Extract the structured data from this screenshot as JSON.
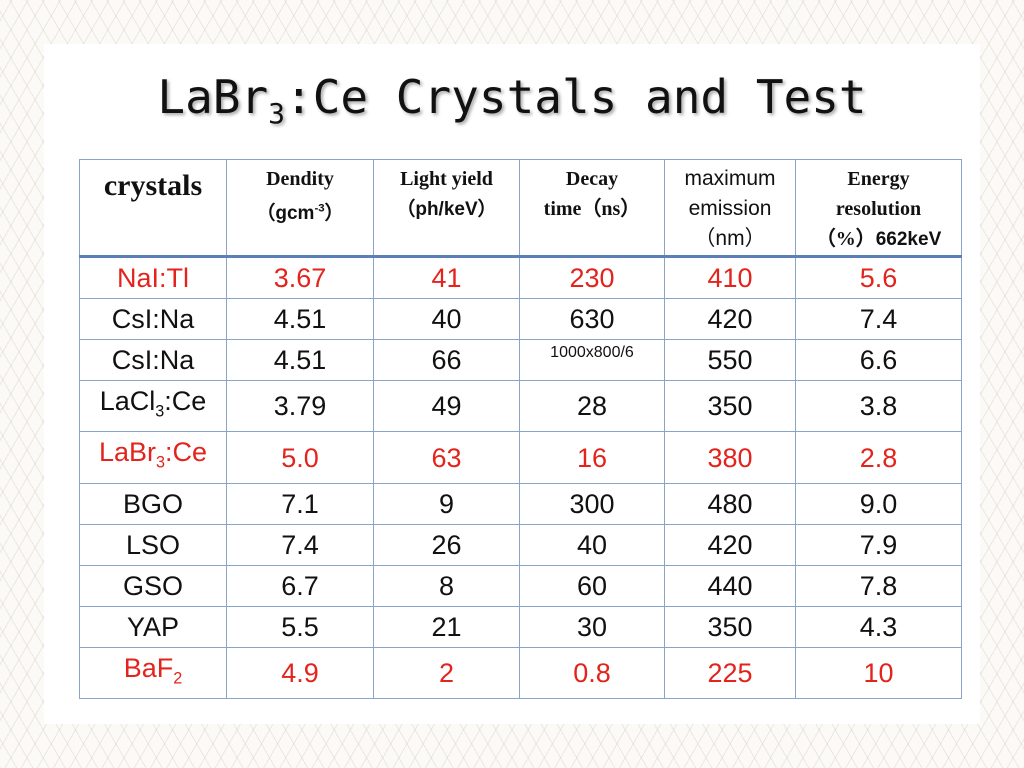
{
  "slide": {
    "title_main": "LaBr",
    "title_sub": "3",
    "title_rest": ":Ce Crystals and Test"
  },
  "table": {
    "headers": {
      "crystals": "crystals",
      "density": "Dendity",
      "density_unit_a": "（gcm",
      "density_unit_sup": "-3",
      "density_unit_b": "）",
      "light_yield": "Light yield",
      "light_yield_unit": "（ph/keV）",
      "decay_a": "Decay",
      "decay_b": "time（ns）",
      "emission_a": "maximum",
      "emission_b": "emission",
      "emission_c": "（nm）",
      "resolution_a": "Energy",
      "resolution_b": "resolution",
      "resolution_c": "（%）",
      "resolution_d": "662keV"
    },
    "rows": [
      {
        "crystal": "NaI:Tl",
        "density": "3.67",
        "light_yield": "41",
        "decay": "230",
        "emission": "410",
        "resolution": "5.6",
        "highlight": true
      },
      {
        "crystal": "CsI:Na",
        "density": "4.51",
        "light_yield": "40",
        "decay": "630",
        "emission": "420",
        "resolution": "7.4",
        "highlight": false
      },
      {
        "crystal": "CsI:Na",
        "density": "4.51",
        "light_yield": "66",
        "decay": "1000x800/6",
        "emission": "550",
        "resolution": "6.6",
        "highlight": false
      },
      {
        "crystal_a": "LaCl",
        "crystal_sub": "3",
        "crystal_b": ":Ce",
        "density": "3.79",
        "light_yield": "49",
        "decay": "28",
        "emission": "350",
        "resolution": "3.8",
        "highlight": false
      },
      {
        "crystal_a": "LaBr",
        "crystal_sub": "3",
        "crystal_b": ":Ce",
        "density": "5.0",
        "light_yield": "63",
        "decay": "16",
        "emission": "380",
        "resolution": "2.8",
        "highlight": true
      },
      {
        "crystal": "BGO",
        "density": "7.1",
        "light_yield": "9",
        "decay": "300",
        "emission": "480",
        "resolution": "9.0",
        "highlight": false
      },
      {
        "crystal": "LSO",
        "density": "7.4",
        "light_yield": "26",
        "decay": "40",
        "emission": "420",
        "resolution": "7.9",
        "highlight": false
      },
      {
        "crystal": "GSO",
        "density": "6.7",
        "light_yield": "8",
        "decay": "60",
        "emission": "440",
        "resolution": "7.8",
        "highlight": false
      },
      {
        "crystal": "YAP",
        "density": "5.5",
        "light_yield": "21",
        "decay": "30",
        "emission": "350",
        "resolution": "4.3",
        "highlight": false
      },
      {
        "crystal_a": "BaF",
        "crystal_sub": "2",
        "crystal_b": "",
        "density": "4.9",
        "light_yield": "2",
        "decay": "0.8",
        "emission": "225",
        "resolution": "10",
        "highlight": true
      }
    ]
  },
  "colors": {
    "highlight_text": "#e3231c",
    "table_border": "#8aa3c8",
    "header_rule": "#5b7fb6"
  }
}
